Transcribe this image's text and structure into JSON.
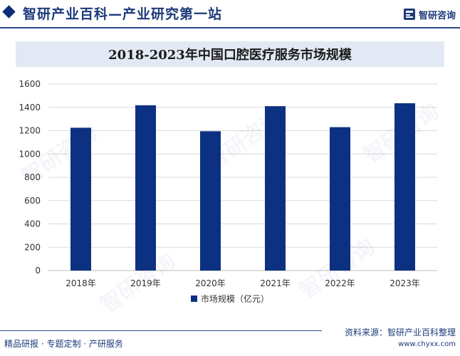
{
  "header": {
    "site_title": "智研产业百科—产业研究第一站",
    "brand": "智研咨询"
  },
  "colors": {
    "bar": "#0d3182",
    "accent": "#1d3a7a",
    "title_band": "#e3e9f4"
  },
  "chart_data": {
    "type": "bar",
    "title": "2018-2023年中国口腔医疗服务市场规模",
    "categories": [
      "2018年",
      "2019年",
      "2020年",
      "2021年",
      "2022年",
      "2023年"
    ],
    "series": [
      {
        "name": "市场规模（亿元）",
        "values": [
          1225,
          1418,
          1195,
          1410,
          1230,
          1435
        ]
      }
    ],
    "ylim": [
      0,
      1600
    ],
    "yticks": [
      0,
      200,
      400,
      600,
      800,
      1000,
      1200,
      1400,
      1600
    ],
    "grid": true,
    "legend_position": "bottom-center"
  },
  "footer": {
    "left": "精品研报 · 专题定制 · 产研服务",
    "source": "资料来源：智研产业百科整理",
    "url": "www.chyxx.com"
  }
}
